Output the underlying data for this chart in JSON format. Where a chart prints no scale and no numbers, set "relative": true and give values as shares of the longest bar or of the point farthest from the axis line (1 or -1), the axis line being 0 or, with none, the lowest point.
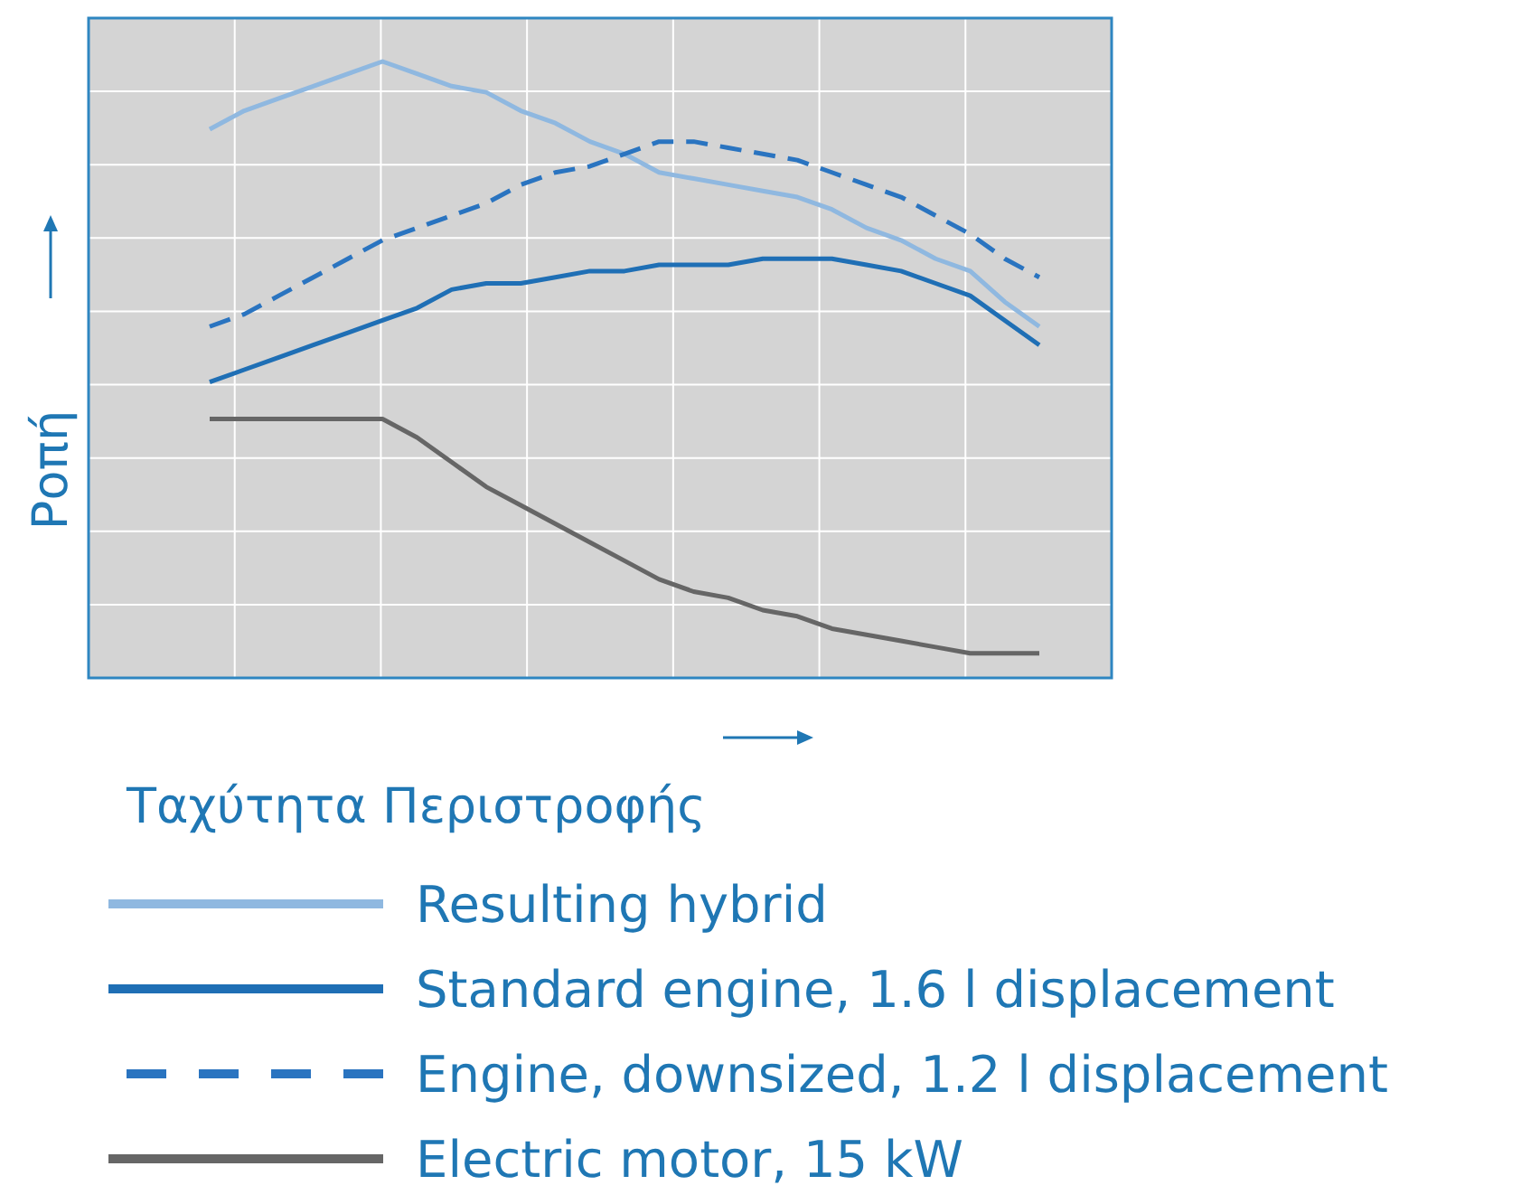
{
  "chart_data": {
    "type": "line",
    "relative": true,
    "xlabel": "Ταχύτητα Περιστροφής",
    "ylabel": "Ροπή",
    "grid": true,
    "legend": "bottom",
    "line_style": "solid",
    "categories": [
      null,
      null,
      null,
      null,
      null,
      null,
      null,
      null,
      null,
      null,
      null,
      null,
      null,
      null,
      null,
      null,
      null,
      null,
      null,
      null,
      null,
      null,
      null,
      null,
      null
    ],
    "series": [
      {
        "name": "Resulting hybrid",
        "color": "#8fb8e0",
        "values": [
          0.89,
          0.92,
          0.94,
          0.96,
          0.98,
          1,
          0.98,
          0.96,
          0.95,
          0.92,
          0.9,
          0.87,
          0.85,
          0.82,
          0.81,
          0.8,
          0.79,
          0.78,
          0.76,
          0.73,
          0.71,
          0.68,
          0.66,
          0.61,
          0.57
        ]
      },
      {
        "name": "Standard engine, 1.6 l displacement",
        "color": "#1f6fb5",
        "values": [
          0.48,
          0.5,
          0.52,
          0.54,
          0.56,
          0.58,
          0.6,
          0.63,
          0.64,
          0.64,
          0.65,
          0.66,
          0.66,
          0.67,
          0.67,
          0.67,
          0.68,
          0.68,
          0.68,
          0.67,
          0.66,
          0.64,
          0.62,
          0.58,
          0.54
        ]
      },
      {
        "name": "Engine, downsized, 1.2 l displacement",
        "color": "#2a74c0",
        "line_style": "dashed",
        "values": [
          0.57,
          0.59,
          0.62,
          0.65,
          0.68,
          0.71,
          0.73,
          0.75,
          0.77,
          0.8,
          0.82,
          0.83,
          0.85,
          0.87,
          0.87,
          0.86,
          0.85,
          0.84,
          0.82,
          0.8,
          0.78,
          0.75,
          0.72,
          0.68,
          0.65
        ]
      },
      {
        "name": "Electric motor, 15 kW",
        "color": "#666666",
        "values": [
          0.42,
          0.42,
          0.42,
          0.42,
          0.42,
          0.42,
          0.39,
          0.35,
          0.31,
          0.28,
          0.25,
          0.22,
          0.19,
          0.16,
          0.14,
          0.13,
          0.11,
          0.1,
          0.08,
          0.07,
          0.06,
          0.05,
          0.04,
          0.04,
          0.04
        ]
      }
    ]
  }
}
